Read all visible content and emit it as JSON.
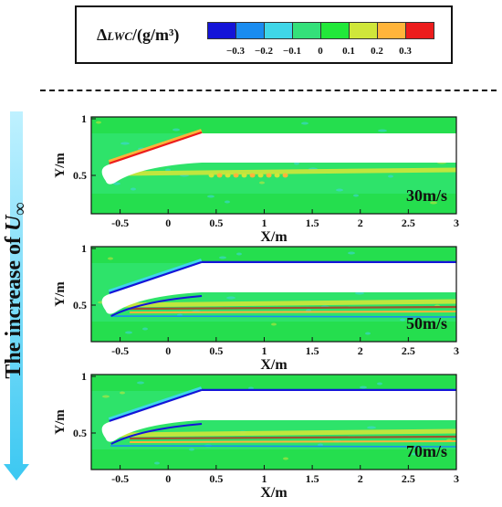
{
  "legend": {
    "symbol": "Δ",
    "subscript": "LWC",
    "unit": "/(g/m³)",
    "colors": [
      "#1414d8",
      "#1a8cf0",
      "#3fd6e8",
      "#34e07a",
      "#22e83a",
      "#cfe63a",
      "#ffb43a",
      "#ec1c1c"
    ],
    "tick_labels": [
      "−0.3",
      "−0.2",
      "−0.1",
      "0",
      "0.1",
      "0.2",
      "0.3"
    ]
  },
  "side_label": {
    "text": "The increase of ",
    "variable": "U",
    "subscript": "∞"
  },
  "axes": {
    "xlabel": "X/m",
    "ylabel": "Y/m",
    "x_ticks": [
      "-0.5",
      "0",
      "0.5",
      "1",
      "1.5",
      "2",
      "2.5",
      "3"
    ],
    "y_ticks": [
      "1",
      "0.5"
    ]
  },
  "panels": [
    {
      "speed": "30m/s"
    },
    {
      "speed": "50m/s"
    },
    {
      "speed": "70m/s"
    }
  ]
}
